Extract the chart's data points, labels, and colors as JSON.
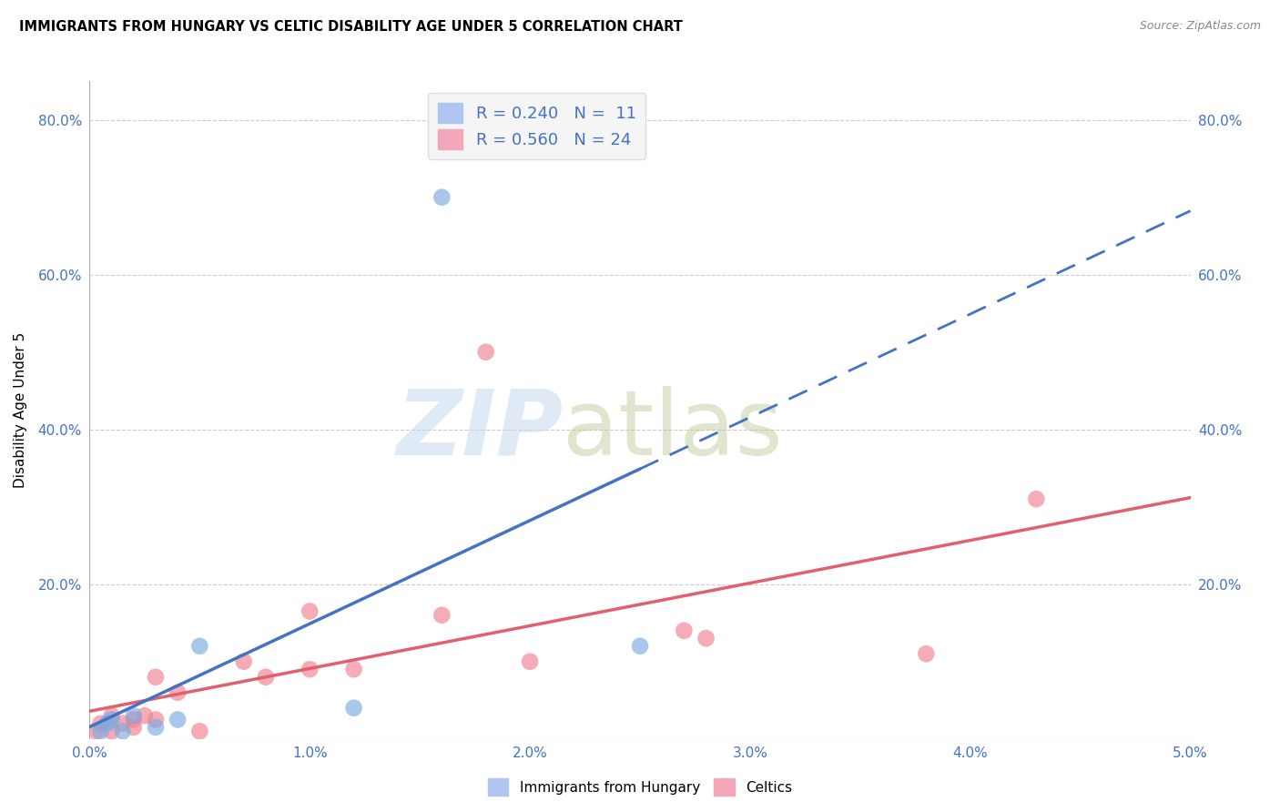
{
  "title": "IMMIGRANTS FROM HUNGARY VS CELTIC DISABILITY AGE UNDER 5 CORRELATION CHART",
  "source": "Source: ZipAtlas.com",
  "ylabel_label": "Disability Age Under 5",
  "xlim": [
    0.0,
    0.05
  ],
  "ylim": [
    0.0,
    0.85
  ],
  "xtick_vals": [
    0.0,
    0.01,
    0.02,
    0.03,
    0.04,
    0.05
  ],
  "ytick_vals": [
    0.0,
    0.2,
    0.4,
    0.6,
    0.8
  ],
  "ytick_labels": [
    "",
    "20.0%",
    "40.0%",
    "60.0%",
    "80.0%"
  ],
  "xtick_labels": [
    "0.0%",
    "1.0%",
    "2.0%",
    "3.0%",
    "4.0%",
    "5.0%"
  ],
  "series_hungary": {
    "scatter_color": "#7baae0",
    "scatter_alpha": 0.65,
    "line_color": "#4472c4",
    "R": 0.24,
    "N": 11,
    "points": [
      [
        0.0005,
        0.01
      ],
      [
        0.0008,
        0.02
      ],
      [
        0.001,
        0.025
      ],
      [
        0.0015,
        0.01
      ],
      [
        0.002,
        0.03
      ],
      [
        0.003,
        0.015
      ],
      [
        0.004,
        0.025
      ],
      [
        0.005,
        0.12
      ],
      [
        0.012,
        0.04
      ],
      [
        0.016,
        0.7
      ],
      [
        0.025,
        0.12
      ]
    ]
  },
  "series_celtics": {
    "scatter_color": "#f08090",
    "scatter_alpha": 0.65,
    "line_color": "#e06070",
    "R": 0.56,
    "N": 24,
    "points": [
      [
        0.0003,
        0.01
      ],
      [
        0.0005,
        0.02
      ],
      [
        0.001,
        0.01
      ],
      [
        0.001,
        0.03
      ],
      [
        0.0015,
        0.02
      ],
      [
        0.002,
        0.015
      ],
      [
        0.002,
        0.025
      ],
      [
        0.0025,
        0.03
      ],
      [
        0.003,
        0.08
      ],
      [
        0.003,
        0.025
      ],
      [
        0.004,
        0.06
      ],
      [
        0.005,
        0.01
      ],
      [
        0.007,
        0.1
      ],
      [
        0.008,
        0.08
      ],
      [
        0.01,
        0.165
      ],
      [
        0.01,
        0.09
      ],
      [
        0.012,
        0.09
      ],
      [
        0.016,
        0.16
      ],
      [
        0.018,
        0.5
      ],
      [
        0.02,
        0.1
      ],
      [
        0.027,
        0.14
      ],
      [
        0.028,
        0.13
      ],
      [
        0.038,
        0.11
      ],
      [
        0.043,
        0.31
      ]
    ]
  },
  "background_color": "#ffffff",
  "grid_color": "#cccccc",
  "legend_box_color": "#f5f5f5",
  "legend_border_color": "#dddddd"
}
